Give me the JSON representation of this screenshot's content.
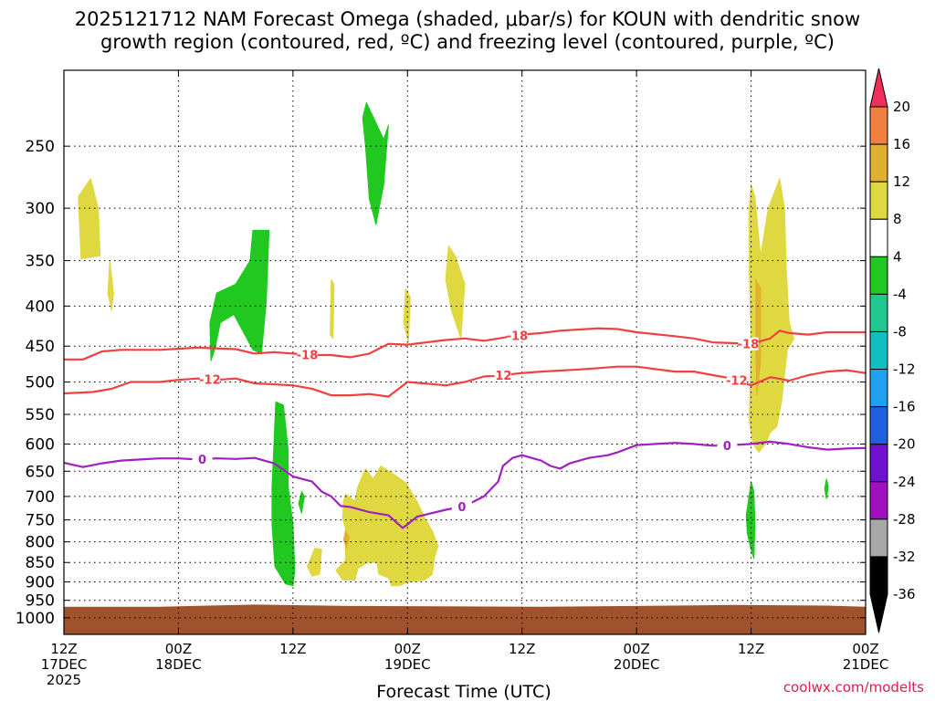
{
  "chart_data": {
    "type": "heatmap",
    "title_line1": "2025121712 NAM Forecast Omega (shaded, μbar/s) for KOUN with dendritic snow",
    "title_line2": "growth region (contoured, red, ºC) and freezing level (contoured, purple, ºC)",
    "xlabel": "Forecast Time (UTC)",
    "x_range_hours": [
      0,
      84
    ],
    "x_ticks": [
      {
        "hour": 0,
        "line1": "12Z",
        "line2": "17DEC",
        "line3": "2025"
      },
      {
        "hour": 12,
        "line1": "00Z",
        "line2": "18DEC",
        "line3": ""
      },
      {
        "hour": 24,
        "line1": "12Z",
        "line2": "",
        "line3": ""
      },
      {
        "hour": 36,
        "line1": "00Z",
        "line2": "19DEC",
        "line3": ""
      },
      {
        "hour": 48,
        "line1": "12Z",
        "line2": "",
        "line3": ""
      },
      {
        "hour": 60,
        "line1": "00Z",
        "line2": "20DEC",
        "line3": ""
      },
      {
        "hour": 72,
        "line1": "12Z",
        "line2": "",
        "line3": ""
      },
      {
        "hour": 84,
        "line1": "00Z",
        "line2": "21DEC",
        "line3": ""
      }
    ],
    "y_range_hpa": [
      1050,
      200
    ],
    "y_ticks_hpa": [
      250,
      300,
      350,
      400,
      450,
      500,
      550,
      600,
      650,
      700,
      750,
      800,
      850,
      900,
      950,
      1000
    ],
    "colorbar": {
      "levels": [
        20,
        16,
        12,
        8,
        4,
        -4,
        -8,
        -12,
        -16,
        -20,
        -24,
        -28,
        -32,
        -36
      ],
      "colors": [
        "#f0305a",
        "#f08040",
        "#e0b030",
        "#e0d840",
        "#ffffff",
        "#20c820",
        "#20c890",
        "#10c0c0",
        "#20a0f0",
        "#2060e0",
        "#7010d0",
        "#a010c0",
        "#a8a8a8",
        "#000000"
      ]
    },
    "ground_color": "#a0522d",
    "ground_top_hpa": [
      [
        0,
        968
      ],
      [
        10,
        968
      ],
      [
        20,
        962
      ],
      [
        30,
        966
      ],
      [
        50,
        968
      ],
      [
        60,
        966
      ],
      [
        70,
        963
      ],
      [
        80,
        965
      ],
      [
        84,
        968
      ]
    ],
    "omega_regions": [
      {
        "label": "+4",
        "color": "#e0d840",
        "points": [
          [
            1.5,
            290
          ],
          [
            2.8,
            275
          ],
          [
            3.6,
            300
          ],
          [
            3.8,
            345
          ],
          [
            1.8,
            348
          ]
        ]
      },
      {
        "label": "+4",
        "color": "#e0d840",
        "points": [
          [
            4.8,
            350
          ],
          [
            5.2,
            385
          ],
          [
            5.0,
            405
          ],
          [
            4.6,
            385
          ]
        ]
      },
      {
        "label": "-4",
        "color": "#20c820",
        "points": [
          [
            16.0,
            385
          ],
          [
            18.0,
            375
          ],
          [
            19.5,
            350
          ],
          [
            19.8,
            320
          ],
          [
            21.5,
            320
          ],
          [
            21.2,
            395
          ],
          [
            20.7,
            460
          ],
          [
            19.8,
            455
          ],
          [
            17.8,
            410
          ],
          [
            16.4,
            420
          ],
          [
            15.8,
            455
          ],
          [
            15.4,
            470
          ],
          [
            15.3,
            420
          ]
        ]
      },
      {
        "label": "-4",
        "color": "#20c820",
        "points": [
          [
            31.7,
            220
          ],
          [
            32.3,
            228
          ],
          [
            33.5,
            245
          ],
          [
            34.0,
            235
          ],
          [
            33.5,
            280
          ],
          [
            32.7,
            315
          ],
          [
            32.0,
            292
          ],
          [
            31.6,
            250
          ],
          [
            31.3,
            230
          ]
        ]
      },
      {
        "label": "+4",
        "color": "#e0d840",
        "points": [
          [
            28.0,
            370
          ],
          [
            28.3,
            375
          ],
          [
            28.2,
            440
          ],
          [
            27.9,
            435
          ]
        ]
      },
      {
        "label": "+4",
        "color": "#e0d840",
        "points": [
          [
            35.8,
            380
          ],
          [
            36.3,
            390
          ],
          [
            36.1,
            445
          ],
          [
            35.6,
            420
          ]
        ]
      },
      {
        "label": "+4",
        "color": "#e0d840",
        "points": [
          [
            40.3,
            335
          ],
          [
            41.0,
            345
          ],
          [
            42.0,
            375
          ],
          [
            41.6,
            440
          ],
          [
            40.6,
            405
          ],
          [
            40.0,
            370
          ]
        ]
      },
      {
        "label": "-4",
        "color": "#20c820",
        "points": [
          [
            22.2,
            530
          ],
          [
            23.0,
            535
          ],
          [
            23.5,
            610
          ],
          [
            23.5,
            680
          ],
          [
            24.0,
            760
          ],
          [
            24.2,
            870
          ],
          [
            24.0,
            910
          ],
          [
            23.2,
            905
          ],
          [
            22.1,
            860
          ],
          [
            21.8,
            760
          ],
          [
            21.8,
            680
          ],
          [
            22.0,
            600
          ]
        ]
      },
      {
        "label": "-4",
        "color": "#20c820",
        "points": [
          [
            24.9,
            690
          ],
          [
            25.2,
            700
          ],
          [
            24.9,
            735
          ],
          [
            24.6,
            715
          ]
        ]
      },
      {
        "label": "+4",
        "color": "#e0d840",
        "points": [
          [
            26.3,
            815
          ],
          [
            27.0,
            818
          ],
          [
            26.8,
            880
          ],
          [
            26.0,
            885
          ],
          [
            25.5,
            860
          ]
        ]
      },
      {
        "label": "+4",
        "color": "#e0d840",
        "points": [
          [
            29.5,
            695
          ],
          [
            30.5,
            710
          ],
          [
            30.8,
            680
          ],
          [
            31.6,
            645
          ],
          [
            32.4,
            665
          ],
          [
            33.2,
            640
          ],
          [
            34.5,
            655
          ],
          [
            35.8,
            672
          ],
          [
            37.0,
            710
          ],
          [
            37.8,
            745
          ],
          [
            38.6,
            775
          ],
          [
            39.2,
            810
          ],
          [
            38.8,
            840
          ],
          [
            38.6,
            880
          ],
          [
            37.8,
            895
          ],
          [
            36.0,
            900
          ],
          [
            35.2,
            910
          ],
          [
            34.3,
            910
          ],
          [
            34.1,
            890
          ],
          [
            33.0,
            880
          ],
          [
            32.8,
            850
          ],
          [
            31.8,
            850
          ],
          [
            30.8,
            865
          ],
          [
            30.5,
            895
          ],
          [
            29.2,
            895
          ],
          [
            28.5,
            870
          ],
          [
            29.5,
            845
          ],
          [
            29.5,
            810
          ],
          [
            29.5,
            770
          ],
          [
            29.2,
            745
          ],
          [
            29.3,
            710
          ]
        ]
      },
      {
        "label": "+12",
        "color": "#e0b030",
        "points": [
          [
            29.5,
            775
          ],
          [
            29.9,
            790
          ],
          [
            29.6,
            815
          ],
          [
            29.3,
            795
          ]
        ]
      },
      {
        "label": "+4",
        "color": "#e0d840",
        "points": [
          [
            72.0,
            280
          ],
          [
            72.4,
            290
          ],
          [
            73.0,
            345
          ],
          [
            73.8,
            300
          ],
          [
            75.0,
            275
          ],
          [
            75.5,
            300
          ],
          [
            75.7,
            360
          ],
          [
            76.0,
            420
          ],
          [
            76.5,
            440
          ],
          [
            75.8,
            455
          ],
          [
            75.2,
            530
          ],
          [
            74.7,
            570
          ],
          [
            74.0,
            580
          ],
          [
            73.5,
            600
          ],
          [
            72.8,
            615
          ],
          [
            72.2,
            600
          ],
          [
            71.8,
            560
          ],
          [
            71.9,
            510
          ],
          [
            72.0,
            440
          ],
          [
            71.8,
            360
          ],
          [
            71.8,
            300
          ]
        ]
      },
      {
        "label": "+8",
        "color": "#e0b030",
        "points": [
          [
            72.5,
            370
          ],
          [
            73.0,
            380
          ],
          [
            73.0,
            470
          ],
          [
            72.6,
            520
          ],
          [
            72.5,
            460
          ]
        ]
      },
      {
        "label": "-4",
        "color": "#20c820",
        "points": [
          [
            72.0,
            670
          ],
          [
            72.3,
            690
          ],
          [
            72.4,
            760
          ],
          [
            72.3,
            840
          ],
          [
            72.0,
            820
          ],
          [
            71.6,
            780
          ],
          [
            71.5,
            740
          ]
        ]
      },
      {
        "label": "-4",
        "color": "#20c820",
        "points": [
          [
            79.9,
            665
          ],
          [
            80.1,
            680
          ],
          [
            79.9,
            705
          ],
          [
            79.7,
            685
          ]
        ]
      }
    ],
    "dgz_contours": [
      {
        "label": "-18",
        "color": "#f04040",
        "points": [
          [
            0,
            468
          ],
          [
            2,
            468
          ],
          [
            4,
            457
          ],
          [
            6,
            455
          ],
          [
            10,
            455
          ],
          [
            14,
            452
          ],
          [
            18,
            454
          ],
          [
            20,
            460
          ],
          [
            22,
            458
          ],
          [
            24,
            460
          ],
          [
            26,
            462
          ],
          [
            28,
            462
          ],
          [
            30,
            465
          ],
          [
            32,
            460
          ],
          [
            34,
            447
          ],
          [
            36,
            448
          ],
          [
            40,
            442
          ],
          [
            42,
            440
          ],
          [
            44,
            443
          ],
          [
            48,
            435
          ],
          [
            50,
            433
          ],
          [
            52,
            430
          ],
          [
            56,
            427
          ],
          [
            58,
            428
          ],
          [
            60,
            432
          ],
          [
            64,
            437
          ],
          [
            66,
            440
          ],
          [
            68,
            445
          ],
          [
            70,
            446
          ],
          [
            72,
            447
          ],
          [
            74,
            440
          ],
          [
            75,
            430
          ],
          [
            76,
            433
          ],
          [
            78,
            435
          ],
          [
            80,
            432
          ],
          [
            82,
            432
          ],
          [
            84,
            432
          ]
        ],
        "label_hours": [
          25.5,
          47.5,
          71.7
        ]
      },
      {
        "label": "-12",
        "color": "#f04040",
        "points": [
          [
            0,
            517
          ],
          [
            3,
            515
          ],
          [
            5,
            510
          ],
          [
            7,
            500
          ],
          [
            10,
            500
          ],
          [
            12,
            497
          ],
          [
            14,
            495
          ],
          [
            16,
            497
          ],
          [
            18,
            495
          ],
          [
            20,
            502
          ],
          [
            24,
            505
          ],
          [
            26,
            510
          ],
          [
            28,
            520
          ],
          [
            30,
            520
          ],
          [
            32,
            518
          ],
          [
            34,
            522
          ],
          [
            36,
            500
          ],
          [
            40,
            505
          ],
          [
            42,
            500
          ],
          [
            44,
            492
          ],
          [
            46,
            490
          ],
          [
            48,
            487
          ],
          [
            50,
            485
          ],
          [
            54,
            482
          ],
          [
            56,
            480
          ],
          [
            58,
            478
          ],
          [
            60,
            478
          ],
          [
            64,
            485
          ],
          [
            66,
            485
          ],
          [
            68,
            490
          ],
          [
            70,
            495
          ],
          [
            72,
            505
          ],
          [
            74,
            493
          ],
          [
            76,
            498
          ],
          [
            78,
            490
          ],
          [
            80,
            485
          ],
          [
            82,
            483
          ],
          [
            84,
            487
          ]
        ],
        "label_hours": [
          15.3,
          45.8,
          70.5
        ]
      }
    ],
    "freezing_level_contour": {
      "label": "0",
      "color": "#a020c0",
      "points": [
        [
          0,
          634
        ],
        [
          2,
          642
        ],
        [
          4,
          635
        ],
        [
          6,
          630
        ],
        [
          8,
          628
        ],
        [
          10,
          626
        ],
        [
          12,
          626
        ],
        [
          14,
          628
        ],
        [
          16,
          626
        ],
        [
          18,
          627
        ],
        [
          20,
          625
        ],
        [
          22,
          635
        ],
        [
          24,
          660
        ],
        [
          26,
          670
        ],
        [
          27,
          690
        ],
        [
          28,
          700
        ],
        [
          29,
          720
        ],
        [
          30,
          722
        ],
        [
          32,
          733
        ],
        [
          34,
          740
        ],
        [
          35.5,
          768
        ],
        [
          36,
          760
        ],
        [
          37,
          743
        ],
        [
          38,
          738
        ],
        [
          40,
          728
        ],
        [
          42,
          720
        ],
        [
          44,
          700
        ],
        [
          45.5,
          670
        ],
        [
          46,
          640
        ],
        [
          47,
          625
        ],
        [
          48,
          620
        ],
        [
          49,
          625
        ],
        [
          50,
          630
        ],
        [
          51,
          640
        ],
        [
          52,
          645
        ],
        [
          53,
          635
        ],
        [
          55,
          625
        ],
        [
          57,
          620
        ],
        [
          58,
          615
        ],
        [
          60,
          602
        ],
        [
          62,
          600
        ],
        [
          64,
          598
        ],
        [
          66,
          600
        ],
        [
          68,
          603
        ],
        [
          70,
          602
        ],
        [
          72,
          600
        ],
        [
          74,
          596
        ],
        [
          76,
          600
        ],
        [
          78,
          606
        ],
        [
          80,
          610
        ],
        [
          82,
          608
        ],
        [
          84,
          607
        ]
      ],
      "label_hours": [
        14.5,
        41.7,
        69.5
      ]
    },
    "credit": "coolwx.com/modelts"
  }
}
